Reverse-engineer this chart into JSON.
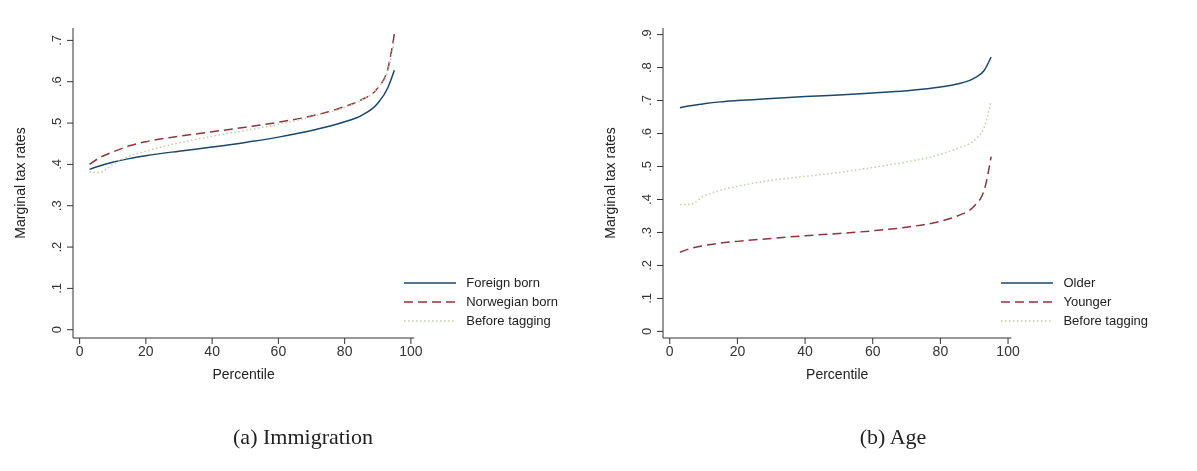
{
  "chart_data": [
    {
      "type": "line",
      "title": "(a) Immigration",
      "xlabel": "Percentile",
      "ylabel": "Marginal tax rates",
      "x": [
        3,
        6,
        10,
        15,
        20,
        30,
        40,
        50,
        60,
        70,
        80,
        85,
        90,
        93,
        95
      ],
      "xlim": [
        -2,
        101
      ],
      "xticks": [
        0,
        20,
        40,
        60,
        80,
        100
      ],
      "ylim": [
        -0.02,
        0.73
      ],
      "yticks": [
        {
          "value": 0,
          "label": "0"
        },
        {
          "value": 0.1,
          "label": ".1"
        },
        {
          "value": 0.2,
          "label": ".2"
        },
        {
          "value": 0.3,
          "label": ".3"
        },
        {
          "value": 0.4,
          "label": ".4"
        },
        {
          "value": 0.5,
          "label": ".5"
        },
        {
          "value": 0.6,
          "label": ".6"
        },
        {
          "value": 0.7,
          "label": ".7"
        }
      ],
      "grid": false,
      "legend": "bottom right",
      "marker": "none",
      "series": [
        {
          "name": "Foreign born",
          "color": "#1a476f",
          "line_style": "solid",
          "values": [
            0.388,
            0.396,
            0.405,
            0.414,
            0.421,
            0.432,
            0.442,
            0.453,
            0.466,
            0.482,
            0.503,
            0.518,
            0.548,
            0.585,
            0.628
          ]
        },
        {
          "name": "Norwegian born",
          "color": "#90353b",
          "line_style": "dashed",
          "values": [
            0.4,
            0.416,
            0.43,
            0.445,
            0.455,
            0.468,
            0.479,
            0.49,
            0.502,
            0.517,
            0.54,
            0.556,
            0.585,
            0.63,
            0.715
          ]
        },
        {
          "name": "Before tagging",
          "color": "#bfcfa8",
          "line_style": "dotted",
          "values": [
            0.382,
            0.38,
            0.4,
            0.42,
            0.432,
            0.452,
            0.468,
            0.482,
            0.497,
            0.515,
            0.538,
            0.555,
            0.585,
            0.625,
            0.7
          ]
        }
      ]
    },
    {
      "type": "line",
      "title": "(b) Age",
      "xlabel": "Percentile",
      "ylabel": "Marginal tax rates",
      "x": [
        3,
        6,
        10,
        15,
        20,
        30,
        40,
        50,
        60,
        70,
        80,
        85,
        90,
        93,
        95
      ],
      "xlim": [
        -2,
        101
      ],
      "xticks": [
        0,
        20,
        40,
        60,
        80,
        100
      ],
      "ylim": [
        -0.02,
        0.92
      ],
      "yticks": [
        {
          "value": 0,
          "label": "0"
        },
        {
          "value": 0.1,
          "label": ".1"
        },
        {
          "value": 0.2,
          "label": ".2"
        },
        {
          "value": 0.3,
          "label": ".3"
        },
        {
          "value": 0.4,
          "label": ".4"
        },
        {
          "value": 0.5,
          "label": ".5"
        },
        {
          "value": 0.6,
          "label": ".6"
        },
        {
          "value": 0.7,
          "label": ".7"
        },
        {
          "value": 0.8,
          "label": ".8"
        },
        {
          "value": 0.9,
          "label": ".9"
        }
      ],
      "grid": false,
      "legend": "bottom right",
      "marker": "none",
      "series": [
        {
          "name": "Older",
          "color": "#1a476f",
          "line_style": "solid",
          "values": [
            0.678,
            0.684,
            0.69,
            0.696,
            0.7,
            0.706,
            0.712,
            0.717,
            0.723,
            0.73,
            0.741,
            0.75,
            0.768,
            0.792,
            0.832
          ]
        },
        {
          "name": "Younger",
          "color": "#90353b",
          "line_style": "dashed",
          "values": [
            0.24,
            0.251,
            0.26,
            0.268,
            0.273,
            0.282,
            0.29,
            0.297,
            0.305,
            0.316,
            0.334,
            0.35,
            0.38,
            0.43,
            0.53
          ]
        },
        {
          "name": "Before tagging",
          "color": "#bfcfa8",
          "line_style": "dotted",
          "values": [
            0.385,
            0.385,
            0.41,
            0.428,
            0.44,
            0.458,
            0.47,
            0.482,
            0.497,
            0.514,
            0.537,
            0.555,
            0.58,
            0.62,
            0.7
          ]
        }
      ]
    }
  ]
}
